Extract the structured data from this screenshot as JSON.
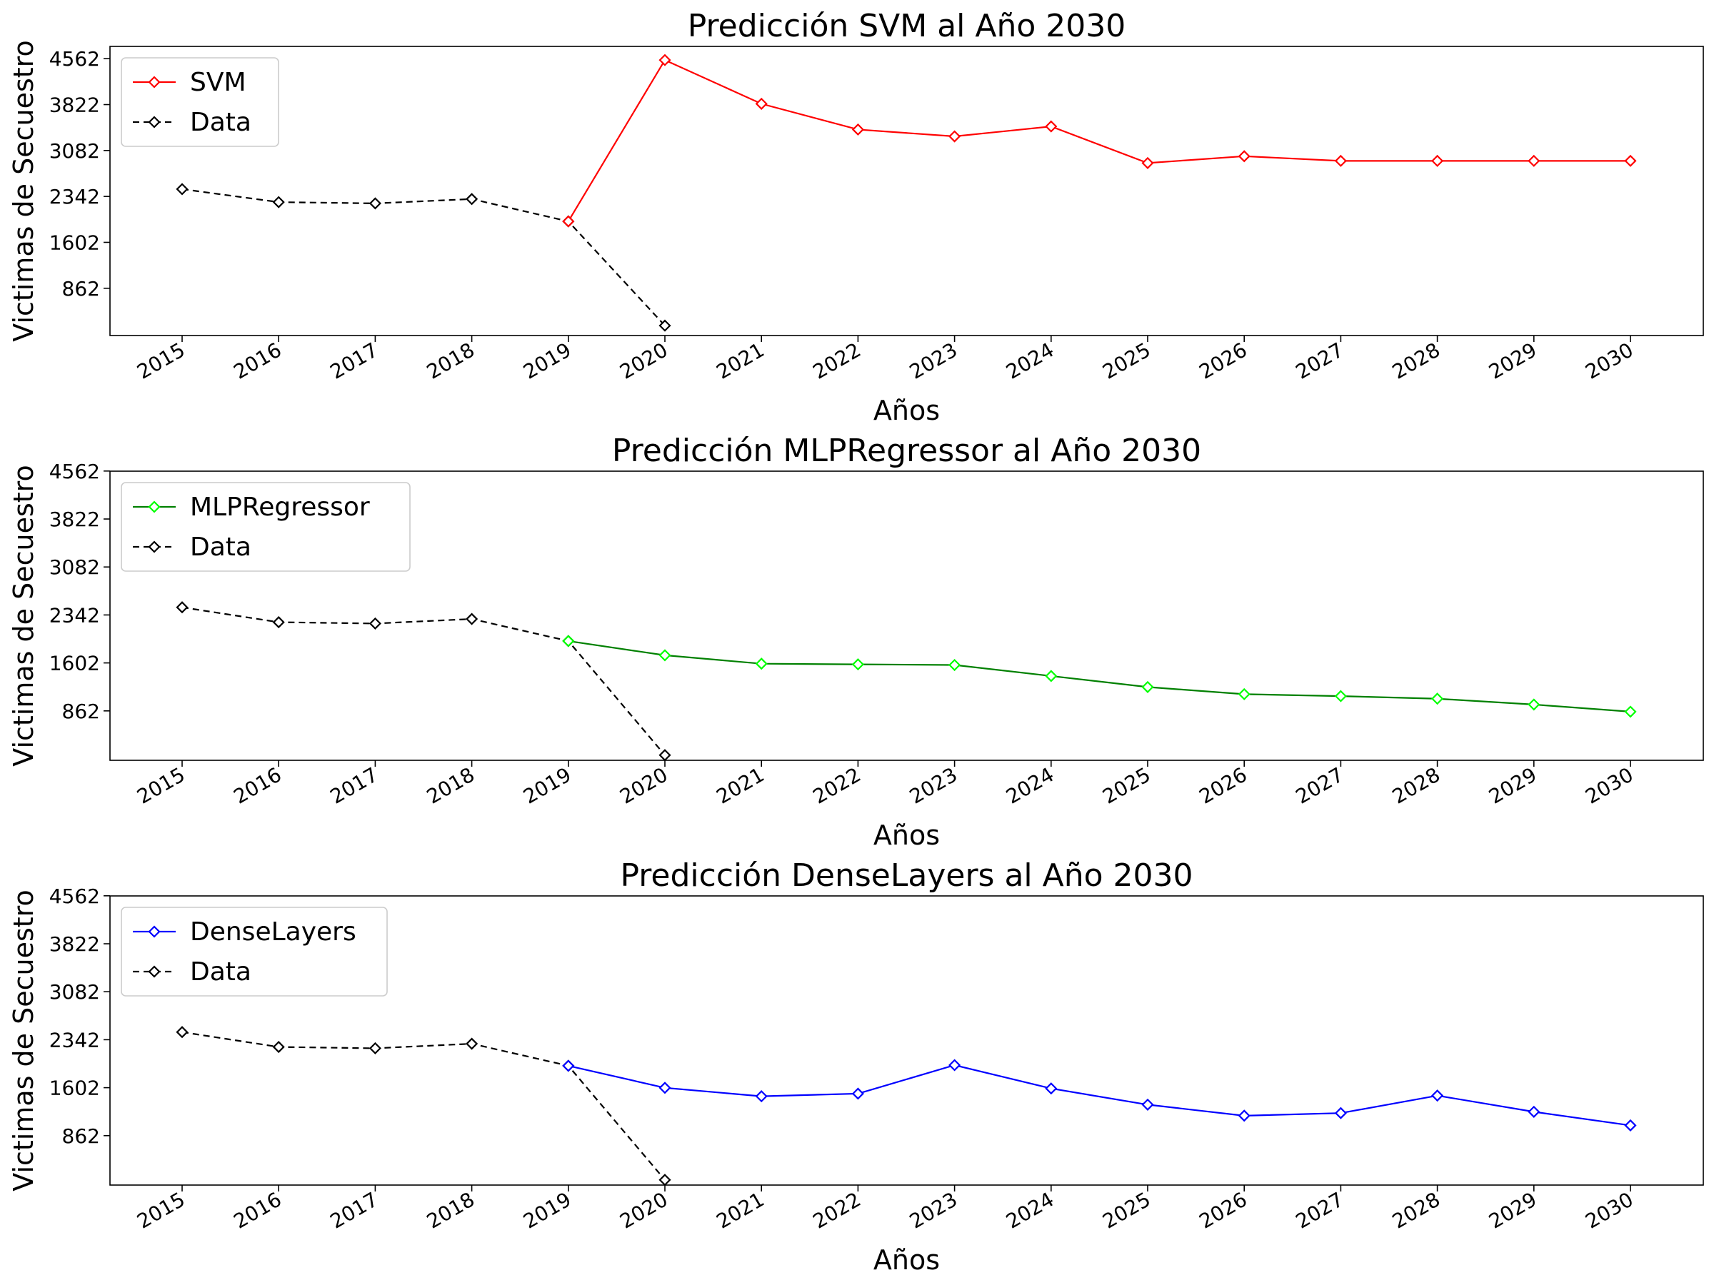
{
  "chart_data": [
    {
      "type": "line",
      "title": "Predicción SVM al Año 2030",
      "xlabel": "Años",
      "ylabel": "Victimas de Secuestro",
      "x": [
        "2015",
        "2016",
        "2017",
        "2018",
        "2019",
        "2020",
        "2021",
        "2022",
        "2023",
        "2024",
        "2025",
        "2026",
        "2027",
        "2028",
        "2029",
        "2030"
      ],
      "yticks": [
        "862",
        "1602",
        "2342",
        "3082",
        "3822",
        "4562"
      ],
      "ylim": [
        100,
        4760
      ],
      "legend_position": "top-left",
      "grid": false,
      "series": [
        {
          "name": "SVM",
          "color": "#ff0000",
          "style": "solid",
          "marker": "diamond",
          "x": [
            2019,
            2020,
            2021,
            2022,
            2023,
            2024,
            2025,
            2026,
            2027,
            2028,
            2029,
            2030
          ],
          "y": [
            1940,
            4540,
            3835,
            3420,
            3310,
            3470,
            2880,
            2990,
            2915,
            2915,
            2915,
            2915
          ]
        },
        {
          "name": "Data",
          "color": "#000000",
          "style": "dashed",
          "marker": "diamond",
          "x": [
            2015,
            2016,
            2017,
            2018,
            2019,
            2020
          ],
          "y": [
            2460,
            2250,
            2230,
            2300,
            1940,
            260
          ]
        }
      ]
    },
    {
      "type": "line",
      "title": "Predicción MLPRegressor al Año 2030",
      "xlabel": "Años",
      "ylabel": "Victimas de Secuestro",
      "x": [
        "2015",
        "2016",
        "2017",
        "2018",
        "2019",
        "2020",
        "2021",
        "2022",
        "2023",
        "2024",
        "2025",
        "2026",
        "2027",
        "2028",
        "2029",
        "2030"
      ],
      "yticks": [
        "862",
        "1602",
        "2342",
        "3082",
        "3822",
        "4562"
      ],
      "ylim": [
        100,
        4560
      ],
      "legend_position": "top-left",
      "grid": false,
      "series": [
        {
          "name": "MLPRegressor",
          "color": "#008000",
          "marker_color": "#00ff00",
          "style": "solid",
          "marker": "diamond",
          "x": [
            2019,
            2020,
            2021,
            2022,
            2023,
            2024,
            2025,
            2026,
            2027,
            2028,
            2029,
            2030
          ],
          "y": [
            1940,
            1720,
            1590,
            1580,
            1570,
            1400,
            1230,
            1120,
            1090,
            1050,
            960,
            850
          ]
        },
        {
          "name": "Data",
          "color": "#000000",
          "style": "dashed",
          "marker": "diamond",
          "x": [
            2015,
            2016,
            2017,
            2018,
            2019,
            2020
          ],
          "y": [
            2460,
            2230,
            2210,
            2280,
            1940,
            180
          ]
        }
      ]
    },
    {
      "type": "line",
      "title": "Predicción DenseLayers al Año 2030",
      "xlabel": "Años",
      "ylabel": "Victimas de Secuestro",
      "x": [
        "2015",
        "2016",
        "2017",
        "2018",
        "2019",
        "2020",
        "2021",
        "2022",
        "2023",
        "2024",
        "2025",
        "2026",
        "2027",
        "2028",
        "2029",
        "2030"
      ],
      "yticks": [
        "862",
        "1602",
        "2342",
        "3082",
        "3822",
        "4562"
      ],
      "ylim": [
        100,
        4560
      ],
      "legend_position": "top-left",
      "grid": false,
      "series": [
        {
          "name": "DenseLayers",
          "color": "#0000ff",
          "style": "solid",
          "marker": "diamond",
          "x": [
            2019,
            2020,
            2021,
            2022,
            2023,
            2024,
            2025,
            2026,
            2027,
            2028,
            2029,
            2030
          ],
          "y": [
            1940,
            1600,
            1470,
            1510,
            1950,
            1590,
            1340,
            1170,
            1210,
            1480,
            1230,
            1020
          ]
        },
        {
          "name": "Data",
          "color": "#000000",
          "style": "dashed",
          "marker": "diamond",
          "x": [
            2015,
            2016,
            2017,
            2018,
            2019,
            2020
          ],
          "y": [
            2460,
            2230,
            2210,
            2280,
            1940,
            180
          ]
        }
      ]
    }
  ]
}
